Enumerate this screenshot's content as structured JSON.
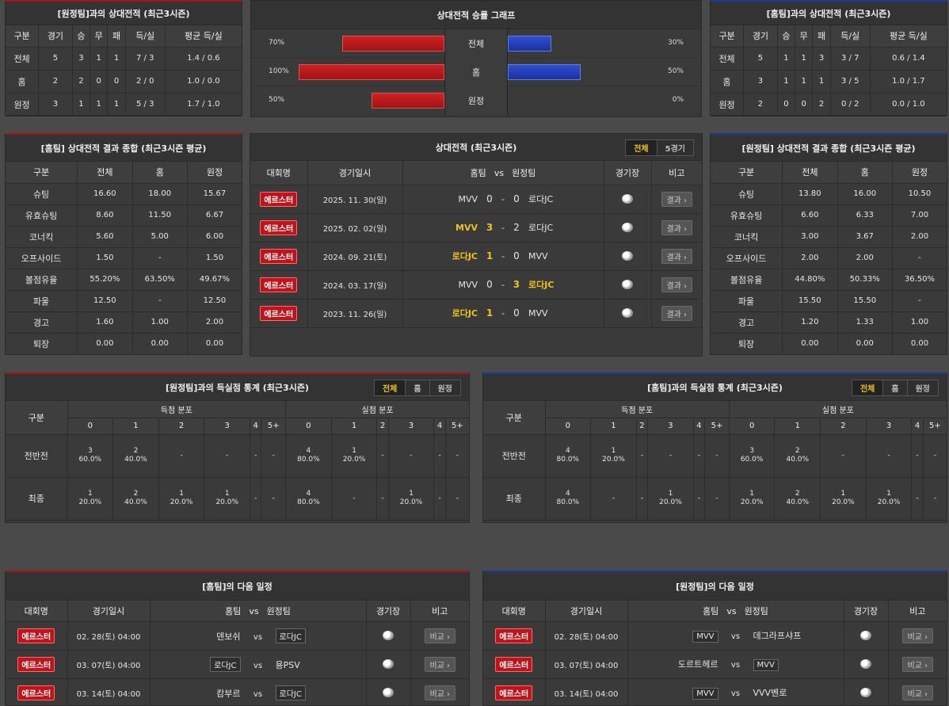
{
  "away_h2h": {
    "title": "[원정팀]과의 상대전적 (최근3시즌)",
    "headers": [
      "구분",
      "경기",
      "승",
      "무",
      "패",
      "득/실",
      "평균 득/실"
    ],
    "rows": [
      [
        "전체",
        "5",
        "3",
        "1",
        "1",
        "7 / 3",
        "1.4 / 0.6"
      ],
      [
        "홈",
        "2",
        "2",
        "0",
        "0",
        "2 / 0",
        "1.0 / 0.0"
      ],
      [
        "원정",
        "3",
        "1",
        "1",
        "1",
        "5 / 3",
        "1.7 / 1.0"
      ]
    ]
  },
  "graph": {
    "title": "상대전적 승률 그래프",
    "rows": [
      {
        "label": "전체",
        "left": "70%",
        "right": "30%",
        "left_val": 70,
        "right_val": 30
      },
      {
        "label": "홈",
        "left": "100%",
        "right": "50%",
        "left_val": 100,
        "right_val": 50
      },
      {
        "label": "원정",
        "left": "50%",
        "right": "0%",
        "left_val": 50,
        "right_val": 0
      }
    ]
  },
  "home_h2h": {
    "title": "[홈팀]과의 상대전적 (최근3시즌)",
    "headers": [
      "구분",
      "경기",
      "승",
      "무",
      "패",
      "득/실",
      "평균 득/실"
    ],
    "rows": [
      [
        "전체",
        "5",
        "1",
        "1",
        "3",
        "3 / 7",
        "0.6 / 1.4"
      ],
      [
        "홈",
        "3",
        "1",
        "1",
        "1",
        "3 / 5",
        "1.0 / 1.7"
      ],
      [
        "원정",
        "2",
        "0",
        "0",
        "2",
        "0 / 2",
        "0.0 / 1.0"
      ]
    ]
  },
  "home_summary": {
    "title": "[홈팀] 상대전적 결과 종합 (최근3시즌 평균)",
    "headers": [
      "구분",
      "전체",
      "홈",
      "원정"
    ],
    "rows": [
      [
        "슈팅",
        "16.60",
        "18.00",
        "15.67"
      ],
      [
        "유효슈팅",
        "8.60",
        "11.50",
        "6.67"
      ],
      [
        "코너킥",
        "5.60",
        "5.00",
        "6.00"
      ],
      [
        "오프사이드",
        "1.50",
        "-",
        "1.50"
      ],
      [
        "볼점유율",
        "55.20%",
        "63.50%",
        "49.67%"
      ],
      [
        "파울",
        "12.50",
        "-",
        "12.50"
      ],
      [
        "경고",
        "1.60",
        "1.00",
        "2.00"
      ],
      [
        "퇴장",
        "0.00",
        "0.00",
        "0.00"
      ]
    ]
  },
  "matches": {
    "title": "상대전적 (최근3시즌)",
    "tabs": [
      "전체",
      "5경기"
    ],
    "headers": {
      "league": "대회명",
      "date": "경기일시",
      "home": "홈팀",
      "vs": "vs",
      "away": "원정팀",
      "venue": "경기장",
      "note": "비고"
    },
    "rows": [
      {
        "league": "에르스터",
        "date": "2025. 11. 30(일)",
        "home": "MVV",
        "hs": "0",
        "as": "0",
        "away": "로다JC",
        "win": "none",
        "btn": "결과"
      },
      {
        "league": "에르스터",
        "date": "2025. 02. 02(일)",
        "home": "MVV",
        "hs": "3",
        "as": "2",
        "away": "로다JC",
        "win": "home",
        "btn": "결과"
      },
      {
        "league": "에르스터",
        "date": "2024. 09. 21(토)",
        "home": "로다JC",
        "hs": "1",
        "as": "0",
        "away": "MVV",
        "win": "home",
        "btn": "결과"
      },
      {
        "league": "에르스터",
        "date": "2024. 03. 17(일)",
        "home": "MVV",
        "hs": "0",
        "as": "3",
        "away": "로다JC",
        "win": "away",
        "btn": "결과"
      },
      {
        "league": "에르스터",
        "date": "2023. 11. 26(일)",
        "home": "로다JC",
        "hs": "1",
        "as": "0",
        "away": "MVV",
        "win": "home",
        "btn": "결과"
      }
    ]
  },
  "away_summary": {
    "title": "[원정팀] 상대전적 결과 종합 (최근3시즌 평균)",
    "headers": [
      "구분",
      "전체",
      "홈",
      "원정"
    ],
    "rows": [
      [
        "슈팅",
        "13.80",
        "16.00",
        "10.50"
      ],
      [
        "유효슈팅",
        "6.60",
        "6.33",
        "7.00"
      ],
      [
        "코너킥",
        "3.00",
        "3.67",
        "2.00"
      ],
      [
        "오프사이드",
        "2.00",
        "2.00",
        "-"
      ],
      [
        "볼점유율",
        "44.80%",
        "50.33%",
        "36.50%"
      ],
      [
        "파울",
        "15.50",
        "15.50",
        "-"
      ],
      [
        "경고",
        "1.20",
        "1.33",
        "1.00"
      ],
      [
        "퇴장",
        "0.00",
        "0.00",
        "0.00"
      ]
    ]
  },
  "goals_left": {
    "title": "[원정팀]과의 득실점 통계 (최근3시즌)",
    "tabs": [
      "전체",
      "홈",
      "원정"
    ],
    "col_label": "구분",
    "scored_label": "득점 분포",
    "conceded_label": "실점 분포",
    "buckets": [
      "0",
      "1",
      "2",
      "3",
      "4",
      "5+"
    ],
    "rows": [
      {
        "label": "전반전",
        "scored": [
          [
            "3",
            "60.0%"
          ],
          [
            "2",
            "40.0%"
          ],
          [
            "-",
            ""
          ],
          [
            "-",
            ""
          ],
          [
            "-",
            ""
          ],
          [
            "-",
            ""
          ]
        ],
        "conceded": [
          [
            "4",
            "80.0%"
          ],
          [
            "1",
            "20.0%"
          ],
          [
            "-",
            ""
          ],
          [
            "-",
            ""
          ],
          [
            "-",
            ""
          ],
          [
            "-",
            ""
          ]
        ]
      },
      {
        "label": "최종",
        "scored": [
          [
            "1",
            "20.0%"
          ],
          [
            "2",
            "40.0%"
          ],
          [
            "1",
            "20.0%"
          ],
          [
            "1",
            "20.0%"
          ],
          [
            "-",
            ""
          ],
          [
            "-",
            ""
          ]
        ],
        "conceded": [
          [
            "4",
            "80.0%"
          ],
          [
            "-",
            ""
          ],
          [
            "-",
            ""
          ],
          [
            "1",
            "20.0%"
          ],
          [
            "-",
            ""
          ],
          [
            "-",
            ""
          ]
        ]
      }
    ]
  },
  "goals_right": {
    "title": "[홈팀]과의 득실점 통계 (최근3시즌)",
    "tabs": [
      "전체",
      "홈",
      "원정"
    ],
    "col_label": "구분",
    "scored_label": "득점 분포",
    "conceded_label": "실점 분포",
    "buckets": [
      "0",
      "1",
      "2",
      "3",
      "4",
      "5+"
    ],
    "rows": [
      {
        "label": "전반전",
        "scored": [
          [
            "4",
            "80.0%"
          ],
          [
            "1",
            "20.0%"
          ],
          [
            "-",
            ""
          ],
          [
            "-",
            ""
          ],
          [
            "-",
            ""
          ],
          [
            "-",
            ""
          ]
        ],
        "conceded": [
          [
            "3",
            "60.0%"
          ],
          [
            "2",
            "40.0%"
          ],
          [
            "-",
            ""
          ],
          [
            "-",
            ""
          ],
          [
            "-",
            ""
          ],
          [
            "-",
            ""
          ]
        ]
      },
      {
        "label": "최종",
        "scored": [
          [
            "4",
            "80.0%"
          ],
          [
            "-",
            ""
          ],
          [
            "-",
            ""
          ],
          [
            "1",
            "20.0%"
          ],
          [
            "-",
            ""
          ],
          [
            "-",
            ""
          ]
        ],
        "conceded": [
          [
            "1",
            "20.0%"
          ],
          [
            "2",
            "40.0%"
          ],
          [
            "1",
            "20.0%"
          ],
          [
            "1",
            "20.0%"
          ],
          [
            "-",
            ""
          ],
          [
            "-",
            ""
          ]
        ]
      }
    ]
  },
  "home_next": {
    "title": "[홈팀]의 다음 일정",
    "headers": {
      "league": "대회명",
      "date": "경기일시",
      "home": "홈팀",
      "vs": "vs",
      "away": "원정팀",
      "venue": "경기장",
      "note": "비고"
    },
    "rows": [
      {
        "league": "에르스터",
        "date": "02. 28(토) 04:00",
        "home": "덴보쉬",
        "away": "로다JC",
        "boxed": "away",
        "btn": "비교"
      },
      {
        "league": "에르스터",
        "date": "03. 07(토) 04:00",
        "home": "로다JC",
        "away": "용PSV",
        "boxed": "home",
        "btn": "비교"
      },
      {
        "league": "에르스터",
        "date": "03. 14(토) 04:00",
        "home": "캄부르",
        "away": "로다JC",
        "boxed": "away",
        "btn": "비교"
      }
    ]
  },
  "away_next": {
    "title": "[원정팀]의 다음 일정",
    "headers": {
      "league": "대회명",
      "date": "경기일시",
      "home": "홈팀",
      "vs": "vs",
      "away": "원정팀",
      "venue": "경기장",
      "note": "비고"
    },
    "rows": [
      {
        "league": "에르스터",
        "date": "02. 28(토) 04:00",
        "home": "MVV",
        "away": "데그라프샤프",
        "boxed": "home",
        "btn": "비교"
      },
      {
        "league": "에르스터",
        "date": "03. 07(토) 04:00",
        "home": "도르트헤르",
        "away": "MVV",
        "boxed": "away",
        "btn": "비교"
      },
      {
        "league": "에르스터",
        "date": "03. 14(토) 04:00",
        "home": "MVV",
        "away": "VVV벤로",
        "boxed": "home",
        "btn": "비교"
      }
    ]
  }
}
